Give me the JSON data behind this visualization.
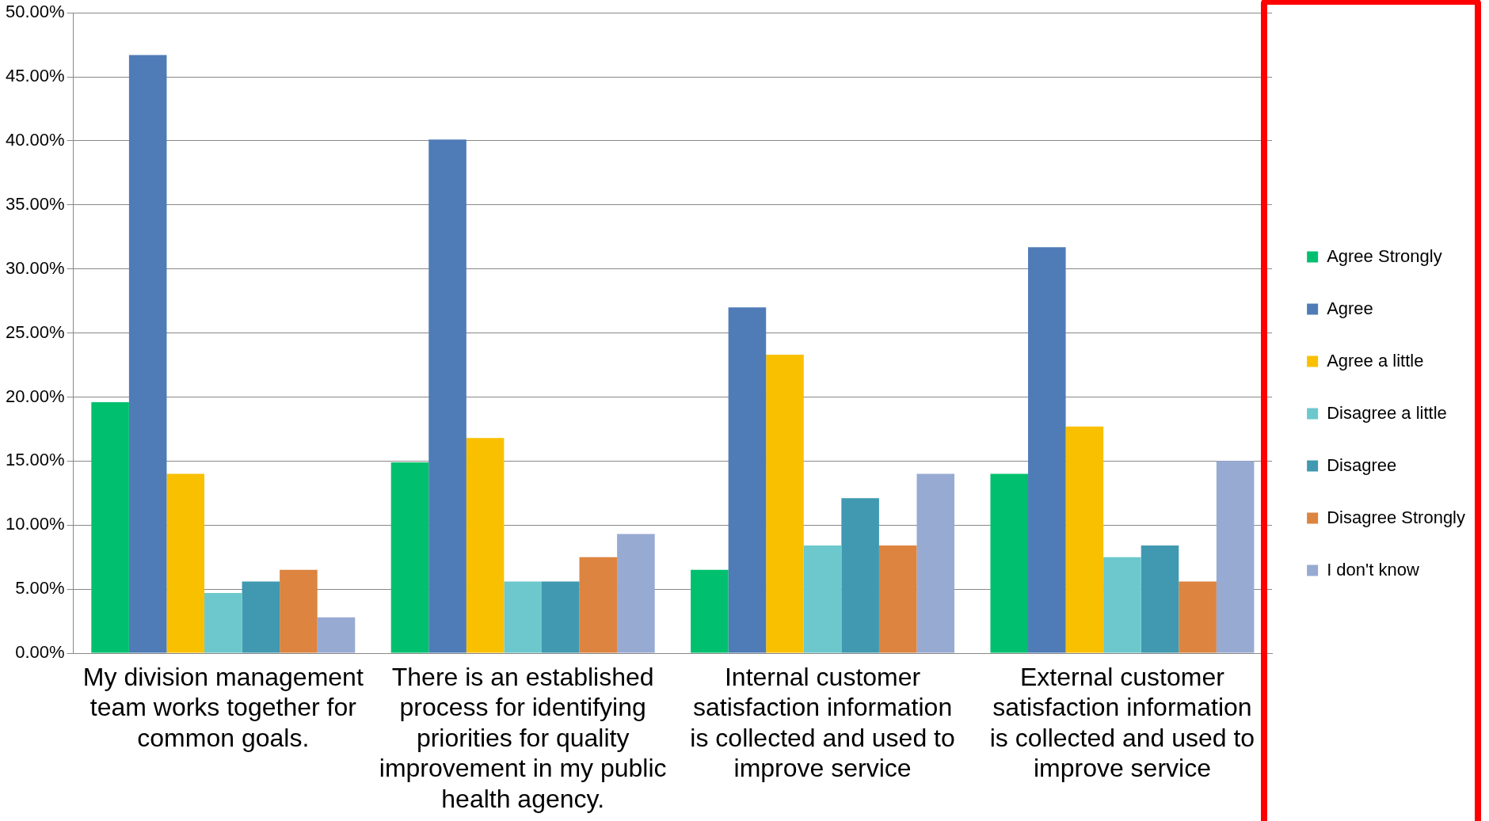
{
  "chart_data": {
    "type": "bar",
    "categories": [
      "My division management team works together for common goals.",
      "There is an established process for identifying priorities for quality improvement in my public health agency.",
      "Internal customer satisfaction information is collected and used to improve service",
      "External customer satisfaction information is collected and used to improve service"
    ],
    "series": [
      {
        "name": "Agree Strongly",
        "color": "#00c06f",
        "values": [
          19.6,
          14.9,
          6.5,
          14.0
        ]
      },
      {
        "name": "Agree",
        "color": "#4f7cb7",
        "values": [
          46.7,
          40.1,
          27.0,
          31.7
        ]
      },
      {
        "name": "Agree a little",
        "color": "#f9c000",
        "values": [
          14.0,
          16.8,
          23.3,
          17.7
        ]
      },
      {
        "name": "Disagree a little",
        "color": "#6cc8cc",
        "values": [
          4.7,
          5.6,
          8.4,
          7.5
        ]
      },
      {
        "name": "Disagree",
        "color": "#4099b0",
        "values": [
          5.6,
          5.6,
          12.1,
          8.4
        ]
      },
      {
        "name": "Disagree Strongly",
        "color": "#dc8440",
        "values": [
          6.5,
          7.5,
          8.4,
          5.6
        ]
      },
      {
        "name": "I don't know",
        "color": "#97aad2",
        "values": [
          2.8,
          9.3,
          14.0,
          15.0
        ]
      }
    ],
    "ylim": [
      0,
      50
    ],
    "yticks": [
      {
        "value": 0,
        "label": "0.00%"
      },
      {
        "value": 5,
        "label": "5.00%"
      },
      {
        "value": 10,
        "label": "10.00%"
      },
      {
        "value": 15,
        "label": "15.00%"
      },
      {
        "value": 20,
        "label": "20.00%"
      },
      {
        "value": 25,
        "label": "25.00%"
      },
      {
        "value": 30,
        "label": "30.00%"
      },
      {
        "value": 35,
        "label": "35.00%"
      },
      {
        "value": 40,
        "label": "40.00%"
      },
      {
        "value": 45,
        "label": "45.00%"
      },
      {
        "value": 50,
        "label": "50.00%"
      }
    ],
    "grid": "y",
    "legend": "right"
  }
}
